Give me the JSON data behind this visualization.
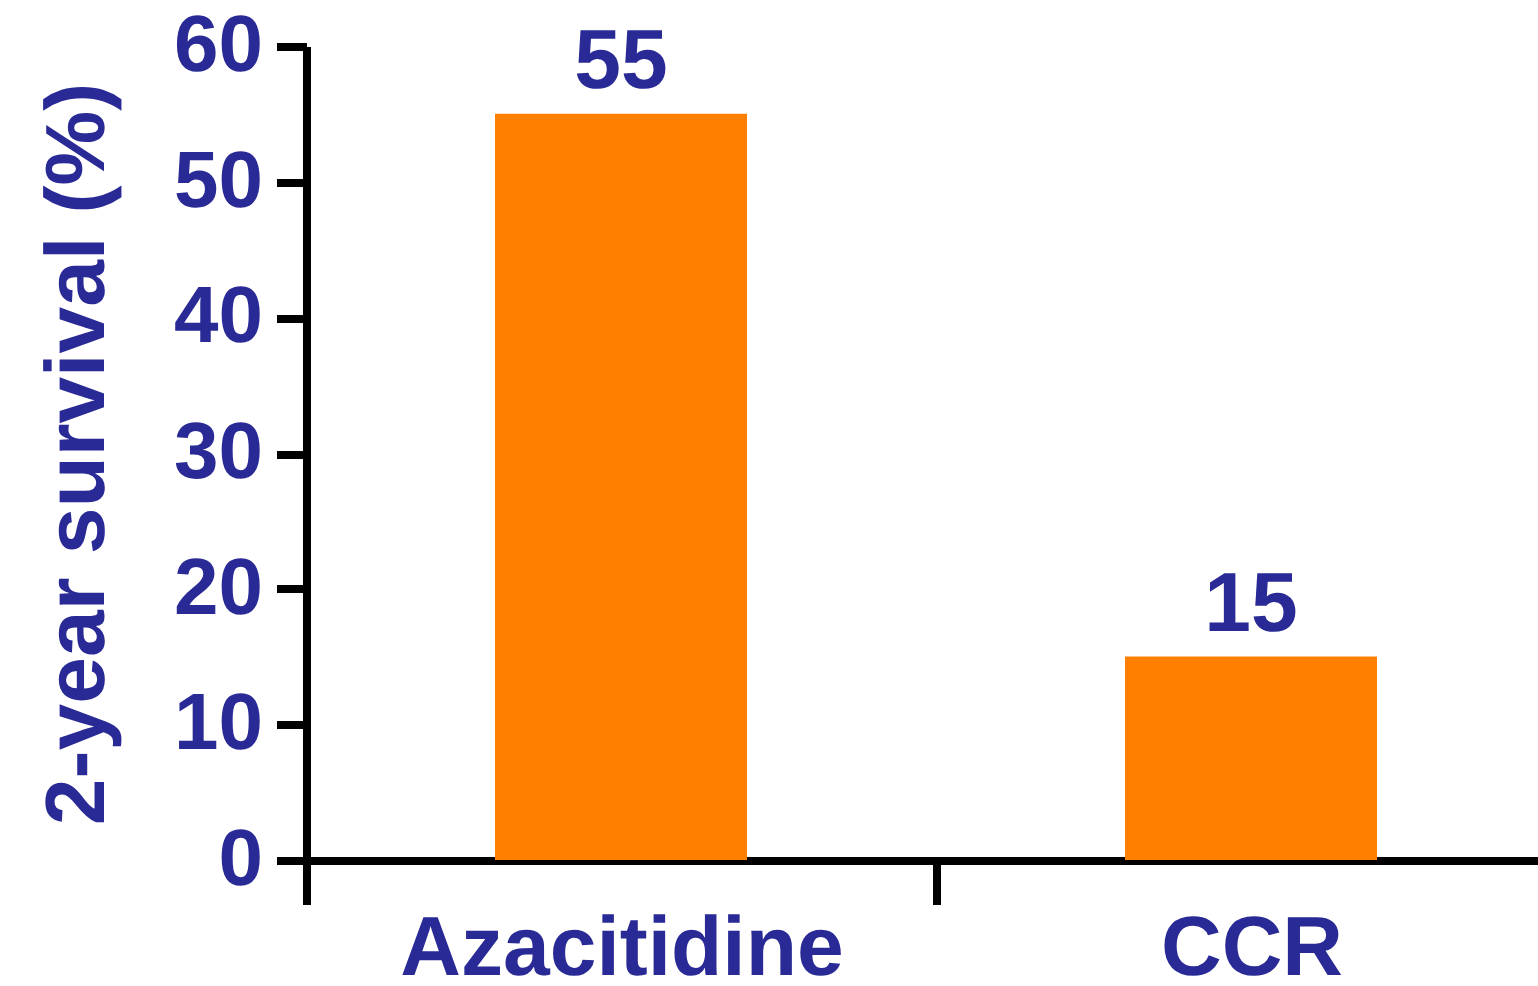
{
  "chart_data": {
    "type": "bar",
    "ylabel": "2-year survival (%)",
    "categories": [
      "Azacitidine",
      "CCR"
    ],
    "values": [
      55,
      15
    ],
    "color": "#ff7f00",
    "ylim": [
      0,
      60
    ],
    "yticks": [
      0,
      10,
      20,
      30,
      40,
      50,
      60
    ],
    "grid": false,
    "data_labels": true
  }
}
